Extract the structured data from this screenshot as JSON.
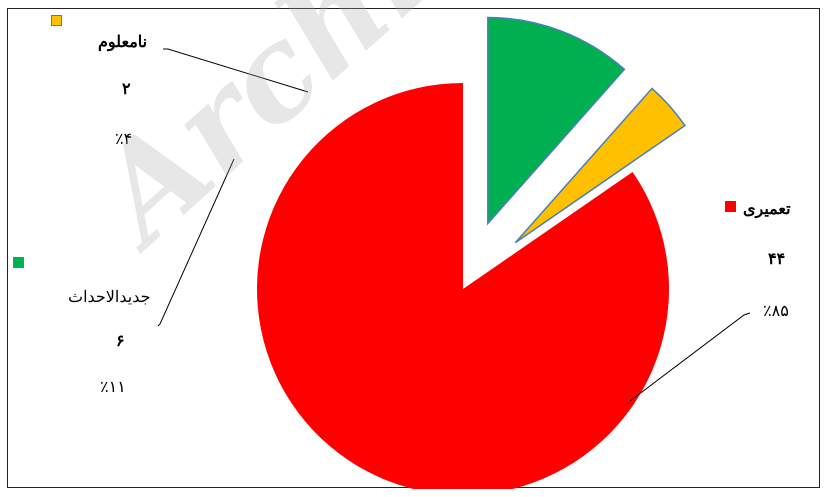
{
  "chart_data": {
    "type": "pie",
    "title": "",
    "slices": [
      {
        "label": "تعمیری",
        "value": 44,
        "percent_label": "٪۸۵",
        "value_label": "۴۴",
        "color": "#ff0000"
      },
      {
        "label": "جدیدالاحداث",
        "value": 6,
        "percent_label": "٪۱۱",
        "value_label": "۶",
        "color": "#00b050"
      },
      {
        "label": "نامعلوم",
        "value": 2,
        "percent_label": "٪۴",
        "value_label": "۲",
        "color": "#ffc000"
      }
    ],
    "exploded": true,
    "legend": "inline"
  },
  "watermark": {
    "text": "Archive of"
  }
}
